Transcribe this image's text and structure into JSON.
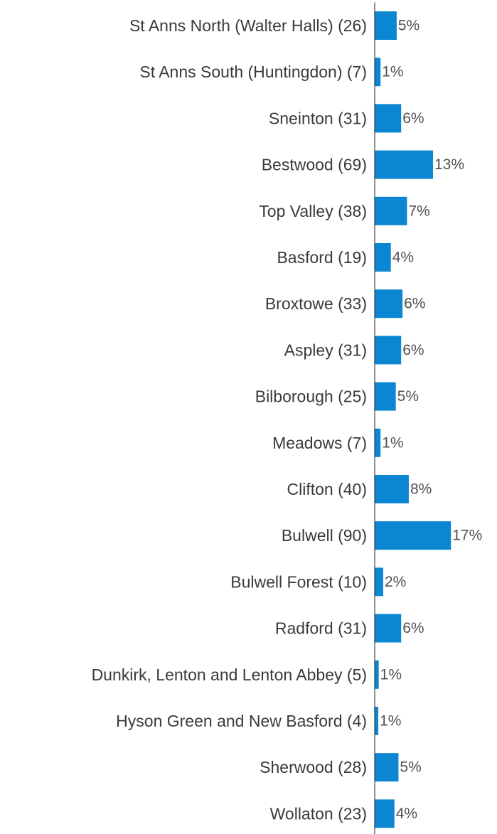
{
  "chart_data": {
    "type": "bar",
    "orientation": "horizontal",
    "bar_color": "#0a86d3",
    "axis_color": "#222222",
    "xlim": [
      0,
      17
    ],
    "categories": [
      "St Anns North (Walter Halls) (26)",
      "St Anns South (Huntingdon) (7)",
      "Sneinton (31)",
      "Bestwood  (69)",
      "Top Valley (38)",
      "Basford (19)",
      "Broxtowe (33)",
      "Aspley (31)",
      "Bilborough (25)",
      "Meadows (7)",
      "Clifton (40)",
      "Bulwell (90)",
      "Bulwell Forest (10)",
      "Radford (31)",
      "Dunkirk, Lenton and Lenton Abbey (5)",
      "Hyson Green and New Basford (4)",
      "Sherwood (28)",
      "Wollaton (23)"
    ],
    "values": [
      4.9,
      1.3,
      5.9,
      13.0,
      7.2,
      3.6,
      6.2,
      5.9,
      4.7,
      1.3,
      7.6,
      17.0,
      1.9,
      5.9,
      0.9,
      0.8,
      5.3,
      4.4
    ],
    "labels": [
      "5%",
      "1%",
      "6%",
      "13%",
      "7%",
      "4%",
      "6%",
      "6%",
      "5%",
      "1%",
      "8%",
      "17%",
      "2%",
      "6%",
      "1%",
      "1%",
      "5%",
      "4%"
    ]
  }
}
